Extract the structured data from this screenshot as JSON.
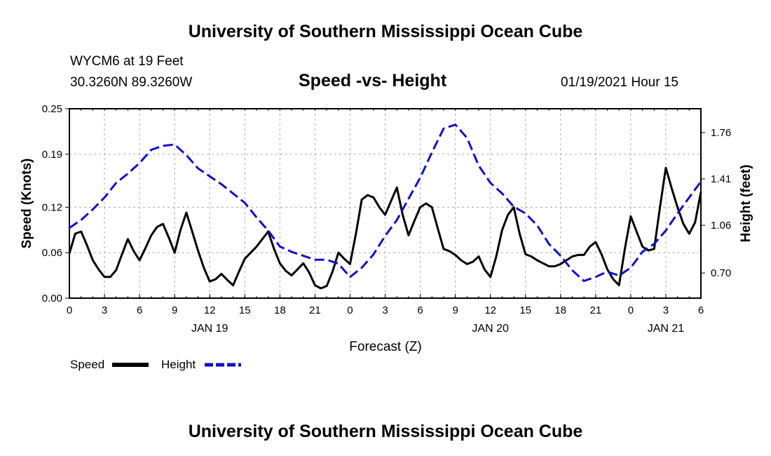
{
  "header": {
    "title_top": "University of Southern Mississippi Ocean Cube",
    "title_bottom": "University of Southern Mississippi Ocean Cube"
  },
  "station": {
    "name": "WYCM6 at 19 Feet",
    "coords": "30.3260N 89.3260W"
  },
  "timestamp": "01/19/2021 Hour 15",
  "colors": {
    "speed": "#000000",
    "height": "#1010c8"
  },
  "chart_data": {
    "type": "line",
    "title": "Speed -vs- Height",
    "xlabel": "Forecast (Z)",
    "ylabel": "Speed (Knots)",
    "y2label": "Height (feet)",
    "xlim": [
      0,
      54
    ],
    "x_ticks": [
      0,
      3,
      6,
      9,
      12,
      15,
      18,
      21,
      24,
      27,
      30,
      33,
      36,
      39,
      42,
      45,
      48,
      51,
      54
    ],
    "x_tick_labels": [
      "0",
      "3",
      "6",
      "9",
      "12",
      "15",
      "18",
      "21",
      "0",
      "3",
      "6",
      "9",
      "12",
      "15",
      "18",
      "21",
      "0",
      "3",
      "6"
    ],
    "day_labels": [
      {
        "x": 12,
        "label": "JAN 19"
      },
      {
        "x": 36,
        "label": "JAN 20"
      },
      {
        "x": 51,
        "label": "JAN 21"
      }
    ],
    "ylim": [
      0,
      0.25
    ],
    "y_ticks": [
      0.0,
      0.06,
      0.12,
      0.19,
      0.25
    ],
    "y_tick_labels": [
      "0.00",
      "0.06",
      "0.12",
      "0.19",
      "0.25"
    ],
    "y2lim": [
      0.51,
      1.94
    ],
    "y2_ticks": [
      0.7,
      1.06,
      1.41,
      1.76
    ],
    "y2_tick_labels": [
      "0.70",
      "1.06",
      "1.41",
      "1.76"
    ],
    "series": [
      {
        "name": "Speed",
        "axis": "left",
        "x": [
          0,
          0.5,
          1,
          1.5,
          2,
          2.5,
          3,
          3.5,
          4,
          4.5,
          5,
          5.5,
          6,
          6.5,
          7,
          7.5,
          8,
          8.5,
          9,
          9.5,
          10,
          10.5,
          11,
          11.5,
          12,
          12.5,
          13,
          13.5,
          14,
          14.5,
          15,
          15.5,
          16,
          16.5,
          17,
          17.5,
          18,
          18.5,
          19,
          19.5,
          20,
          20.5,
          21,
          21.5,
          22,
          22.5,
          23,
          23.5,
          24,
          24.5,
          25,
          25.5,
          26,
          26.5,
          27,
          27.5,
          28,
          28.5,
          29,
          29.5,
          30,
          30.5,
          31,
          31.5,
          32,
          32.5,
          33,
          33.5,
          34,
          34.5,
          35,
          35.5,
          36,
          36.5,
          37,
          37.5,
          38,
          38.5,
          39,
          39.5,
          40,
          40.5,
          41,
          41.5,
          42,
          42.5,
          43,
          43.5,
          44,
          44.5,
          45,
          45.5,
          46,
          46.5,
          47,
          47.5,
          48,
          48.5,
          49,
          49.5,
          50,
          50.5,
          51,
          51.5,
          52,
          52.5,
          53,
          53.5,
          54
        ],
        "values": [
          0.059,
          0.085,
          0.088,
          0.07,
          0.05,
          0.038,
          0.028,
          0.028,
          0.037,
          0.058,
          0.078,
          0.062,
          0.05,
          0.066,
          0.083,
          0.094,
          0.098,
          0.08,
          0.06,
          0.09,
          0.113,
          0.088,
          0.063,
          0.04,
          0.022,
          0.025,
          0.032,
          0.024,
          0.017,
          0.035,
          0.052,
          0.06,
          0.068,
          0.078,
          0.088,
          0.065,
          0.046,
          0.036,
          0.03,
          0.038,
          0.046,
          0.034,
          0.017,
          0.013,
          0.016,
          0.035,
          0.06,
          0.052,
          0.045,
          0.085,
          0.13,
          0.136,
          0.133,
          0.12,
          0.11,
          0.128,
          0.146,
          0.11,
          0.083,
          0.102,
          0.12,
          0.125,
          0.12,
          0.092,
          0.065,
          0.062,
          0.057,
          0.05,
          0.045,
          0.048,
          0.055,
          0.038,
          0.028,
          0.055,
          0.09,
          0.11,
          0.12,
          0.085,
          0.058,
          0.055,
          0.05,
          0.046,
          0.042,
          0.042,
          0.045,
          0.05,
          0.055,
          0.057,
          0.057,
          0.068,
          0.074,
          0.058,
          0.038,
          0.025,
          0.017,
          0.065,
          0.108,
          0.088,
          0.068,
          0.063,
          0.065,
          0.12,
          0.172,
          0.145,
          0.12,
          0.098,
          0.085,
          0.1,
          0.14
        ]
      },
      {
        "name": "Height",
        "axis": "right",
        "x": [
          0,
          1,
          2,
          3,
          4,
          5,
          6,
          7,
          8,
          9,
          10,
          11,
          12,
          13,
          14,
          15,
          16,
          17,
          18,
          19,
          20,
          21,
          22,
          23,
          24,
          25,
          26,
          27,
          28,
          29,
          30,
          31,
          32,
          33,
          34,
          35,
          36,
          37,
          38,
          39,
          40,
          41,
          42,
          43,
          44,
          45,
          46,
          47,
          48,
          49,
          50,
          51,
          52,
          53,
          54
        ],
        "values": [
          1.04,
          1.1,
          1.18,
          1.27,
          1.38,
          1.45,
          1.53,
          1.63,
          1.66,
          1.67,
          1.59,
          1.49,
          1.43,
          1.37,
          1.3,
          1.23,
          1.12,
          1.02,
          0.9,
          0.86,
          0.83,
          0.8,
          0.8,
          0.77,
          0.67,
          0.74,
          0.84,
          0.98,
          1.1,
          1.26,
          1.42,
          1.61,
          1.79,
          1.82,
          1.72,
          1.51,
          1.38,
          1.3,
          1.2,
          1.15,
          1.06,
          0.92,
          0.83,
          0.72,
          0.64,
          0.67,
          0.71,
          0.68,
          0.74,
          0.86,
          0.92,
          1.02,
          1.15,
          1.27,
          1.39
        ]
      }
    ]
  },
  "legend": {
    "speed_label": "Speed",
    "height_label": "Height"
  }
}
